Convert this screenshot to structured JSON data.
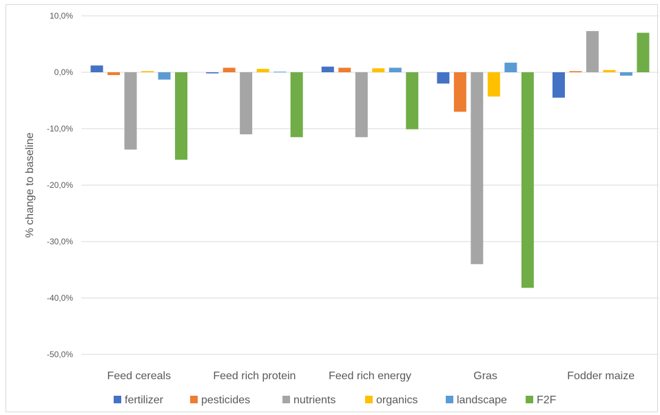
{
  "chart_data": {
    "type": "bar",
    "ylabel": "% change to baseline",
    "ylim": [
      -50,
      10
    ],
    "y_ticks": [
      10,
      0,
      -10,
      -20,
      -30,
      -40,
      -50
    ],
    "y_tick_labels": [
      "10,0%",
      "0,0%",
      "-10,0%",
      "-20,0%",
      "-30,0%",
      "-40,0%",
      "-50,0%"
    ],
    "grid": true,
    "legend_position": "bottom",
    "categories": [
      "Feed cereals",
      "Feed rich protein",
      "Feed rich energy",
      "Gras",
      "Fodder maize"
    ],
    "series": [
      {
        "name": "fertilizer",
        "color": "#4472c4",
        "values": [
          1.2,
          -0.2,
          1.0,
          -2.0,
          -4.5
        ]
      },
      {
        "name": "pesticides",
        "color": "#ed7d31",
        "values": [
          -0.5,
          0.8,
          0.8,
          -7.0,
          0.2
        ]
      },
      {
        "name": "nutrients",
        "color": "#a5a5a5",
        "values": [
          -13.7,
          -11.0,
          -11.5,
          -34.0,
          7.3
        ]
      },
      {
        "name": "organics",
        "color": "#ffc000",
        "values": [
          0.2,
          0.6,
          0.7,
          -4.3,
          0.4
        ]
      },
      {
        "name": "landscape",
        "color": "#5b9bd5",
        "values": [
          -1.3,
          0.1,
          0.8,
          1.7,
          -0.6
        ]
      },
      {
        "name": "F2F",
        "color": "#70ad47",
        "values": [
          -15.5,
          -11.5,
          -10.1,
          -38.2,
          7.0
        ]
      }
    ]
  }
}
